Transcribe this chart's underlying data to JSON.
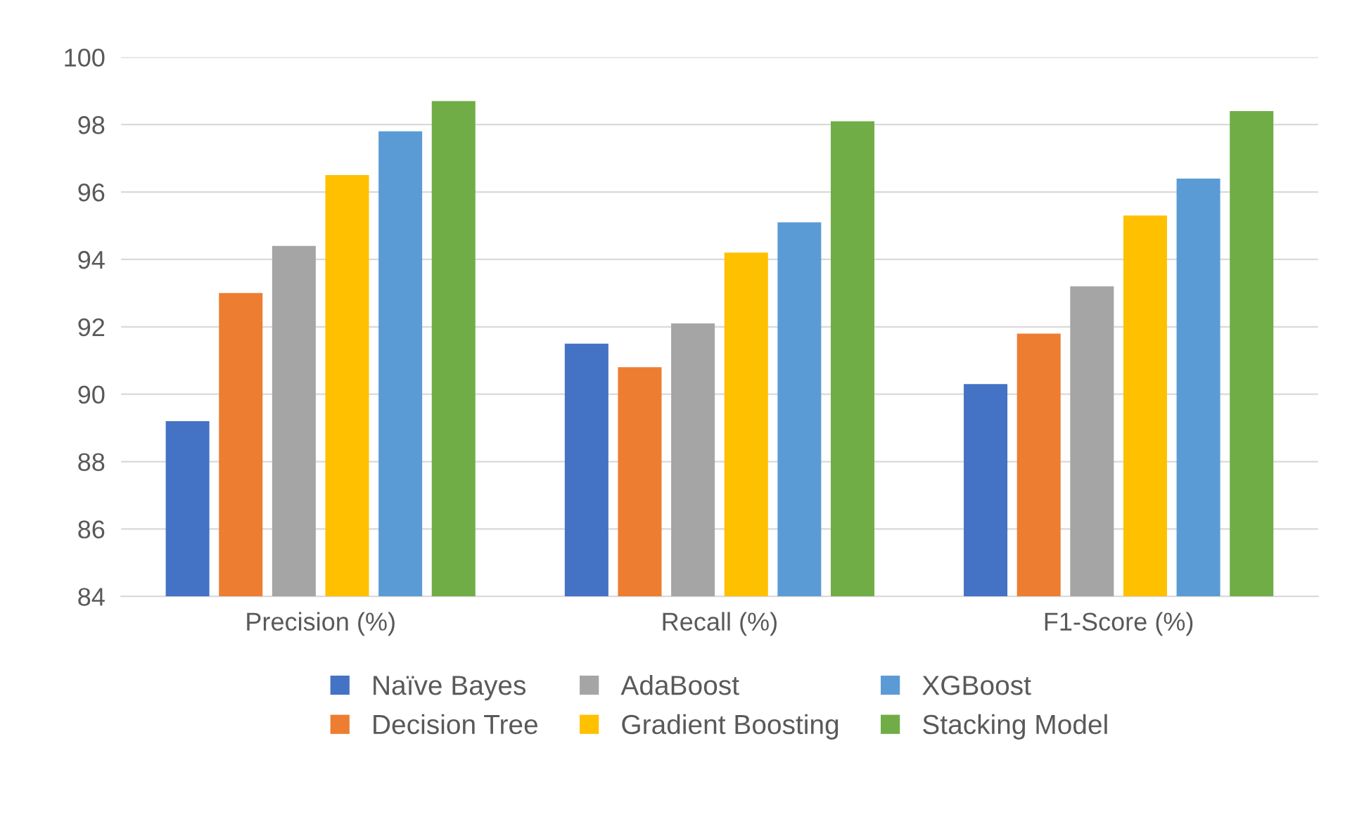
{
  "chart_data": {
    "type": "bar",
    "categories": [
      "Precision (%)",
      "Recall (%)",
      "F1-Score (%)"
    ],
    "series": [
      {
        "name": "Naïve Bayes",
        "color": "#4472c4",
        "values": [
          89.2,
          91.5,
          90.3
        ]
      },
      {
        "name": "Decision Tree",
        "color": "#ed7d31",
        "values": [
          93.0,
          90.8,
          91.8
        ]
      },
      {
        "name": "AdaBoost",
        "color": "#a5a5a5",
        "values": [
          94.4,
          92.1,
          93.2
        ]
      },
      {
        "name": "Gradient Boosting",
        "color": "#ffc000",
        "values": [
          96.5,
          94.2,
          95.3
        ]
      },
      {
        "name": "XGBoost",
        "color": "#5b9bd5",
        "values": [
          97.8,
          95.1,
          96.4
        ]
      },
      {
        "name": "Stacking Model",
        "color": "#70ad47",
        "values": [
          98.7,
          98.1,
          98.4
        ]
      }
    ],
    "ylim": [
      84,
      100
    ],
    "yticks": [
      84,
      86,
      88,
      90,
      92,
      94,
      96,
      98,
      100
    ],
    "grid": "y",
    "legend": "bottom"
  }
}
